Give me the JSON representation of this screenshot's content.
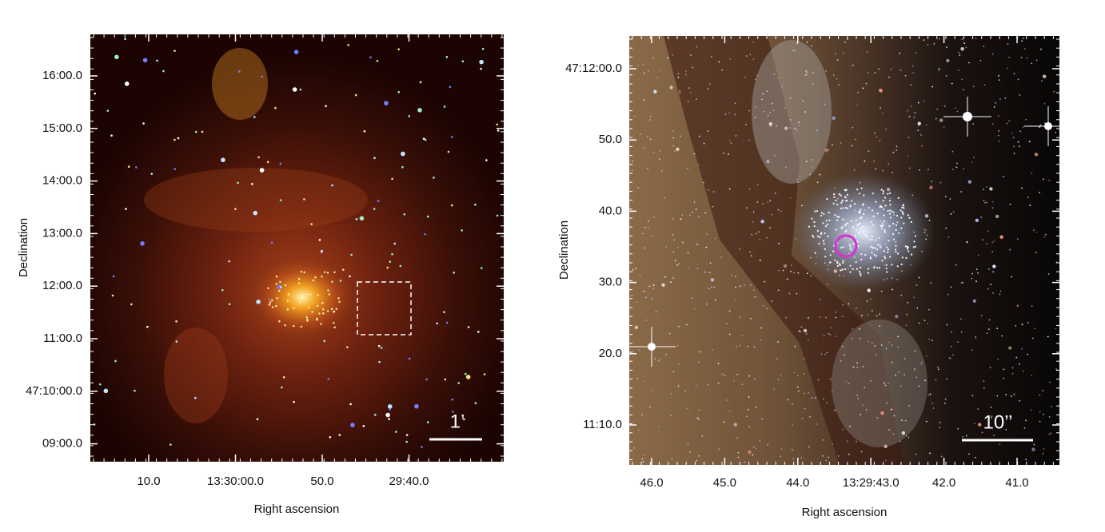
{
  "panels": [
    {
      "y_label": "Declination",
      "x_label": "Right ascension",
      "yticks": [
        "16:00.0",
        "15:00.0",
        "14:00.0",
        "13:00.0",
        "12:00.0",
        "11:00.0",
        "47:10:00.0",
        "09:00.0"
      ],
      "xticks": [
        "10.0",
        "13:30:00.0",
        "50.0",
        "29:40.0"
      ],
      "scale_bar": "1’"
    },
    {
      "y_label": "Declination",
      "x_label": "Right ascension",
      "yticks": [
        "47:12:00.0",
        "50.0",
        "40.0",
        "30.0",
        "20.0",
        "11:10.0"
      ],
      "xticks": [
        "46.0",
        "45.0",
        "44.0",
        "13:29:43.0",
        "42.0",
        "41.0"
      ],
      "scale_bar": "10’’"
    }
  ]
}
